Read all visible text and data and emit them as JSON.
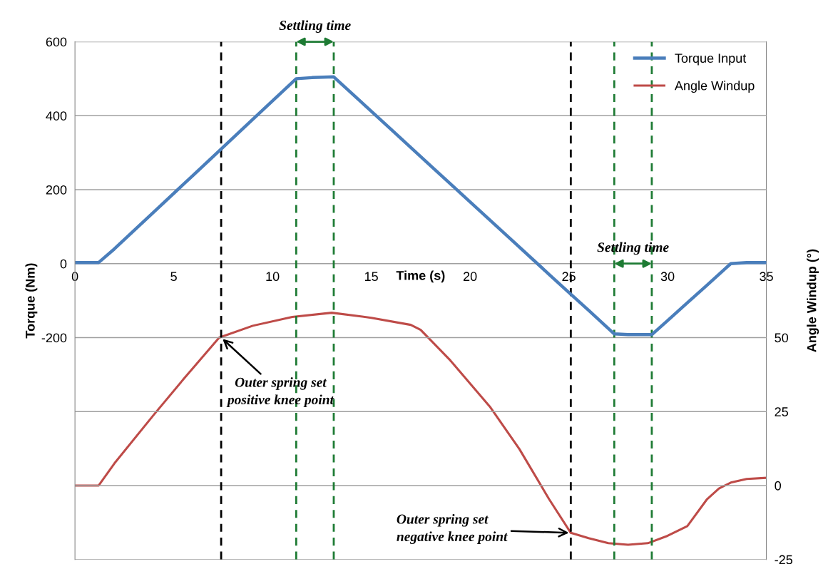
{
  "chart_data": {
    "type": "line",
    "xlabel": "Time (s)",
    "ylabel": "Torque (Nm)",
    "y2label": "Angle Windup (°)",
    "xlim": [
      0,
      35
    ],
    "xticks": [
      0,
      5,
      10,
      15,
      20,
      25,
      30,
      35
    ],
    "ylim": [
      -800,
      600
    ],
    "yticks": [
      600,
      400,
      200,
      0,
      -200,
      {
        "value": -400,
        "label": null
      },
      {
        "value": -600,
        "label": null
      },
      {
        "value": -800,
        "label": null
      }
    ],
    "y2lim": [
      -25,
      150
    ],
    "y2ticks": [
      -25,
      0,
      25,
      50
    ],
    "grid": "y",
    "legend": "top right",
    "series": [
      {
        "name": "Torque Input",
        "color": "#4a7ebb",
        "x": [
          0,
          1.2,
          2,
          4,
          6,
          7.3,
          9,
          11.2,
          12,
          13.1,
          14,
          16,
          18,
          20,
          22,
          24,
          25,
          26,
          27.3,
          28,
          29.2,
          30,
          31,
          32,
          33.2,
          34,
          35
        ],
        "values": [
          3,
          3,
          40,
          140,
          240,
          305,
          390,
          500,
          503,
          505,
          461,
          363,
          265,
          167,
          69,
          -29,
          -78,
          -126,
          -190,
          -192,
          -192,
          -154,
          -106,
          -58,
          0,
          3,
          3
        ]
      },
      {
        "name": "Angle Windup",
        "color": "#be4b48",
        "axis": "y2",
        "x": [
          0,
          1.2,
          2,
          4,
          5.5,
          7.3,
          9,
          11,
          13,
          15,
          17,
          17.5,
          19,
          21,
          22.5,
          24,
          25.1,
          26,
          27,
          28,
          29,
          30,
          31,
          32,
          32.6,
          33.2,
          34,
          35
        ],
        "values": [
          0,
          0,
          7.5,
          24,
          36,
          50,
          54,
          57,
          58.4,
          56.7,
          54.3,
          52.6,
          42.3,
          26.7,
          12.3,
          -4.6,
          -16,
          -17.8,
          -19.5,
          -20,
          -19.5,
          -17,
          -13.7,
          -4.6,
          -1,
          1,
          2.2,
          2.6
        ]
      }
    ],
    "ref_lines": [
      {
        "axis": "x",
        "value": 7.4,
        "label": null,
        "color": "#000000",
        "line_style": "dashed"
      },
      {
        "axis": "x",
        "value": 25.1,
        "label": null,
        "color": "#000000",
        "line_style": "dashed"
      },
      {
        "axis": "x",
        "value": 11.2,
        "label": null,
        "color": "#1e7b34",
        "line_style": "dashed"
      },
      {
        "axis": "x",
        "value": 13.1,
        "label": null,
        "color": "#1e7b34",
        "line_style": "dashed"
      },
      {
        "axis": "x",
        "value": 27.3,
        "label": null,
        "color": "#1e7b34",
        "line_style": "dashed"
      },
      {
        "axis": "x",
        "value": 29.2,
        "label": null,
        "color": "#1e7b34",
        "line_style": "dashed"
      }
    ],
    "annotations": [
      "Settling time",
      "Settling time",
      {
        "text": "Outer spring set\npositive knee point",
        "x": 7.4,
        "y": -200
      },
      {
        "text": "Outer spring set\nnegative knee point",
        "x": 25.1,
        "y": -728
      }
    ]
  }
}
